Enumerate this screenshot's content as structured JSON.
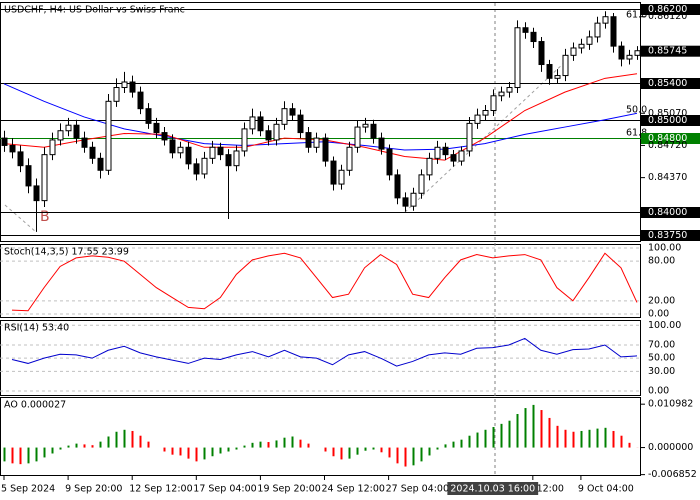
{
  "chart_data": [
    {
      "type": "candlestick",
      "title": "USDCHF, H4:  US Dollar vs Swiss Franc",
      "open": [
        0.848,
        0.8472,
        0.8465,
        0.845,
        0.8428,
        0.8412,
        0.8462,
        0.8478,
        0.8488,
        0.8494,
        0.848,
        0.847,
        0.8458,
        0.8445,
        0.852,
        0.8535,
        0.8541,
        0.853,
        0.8512,
        0.8496,
        0.8486,
        0.8478,
        0.8464,
        0.847,
        0.8452,
        0.8441,
        0.8458,
        0.847,
        0.8462,
        0.845,
        0.8466,
        0.849,
        0.8503,
        0.8488,
        0.8478,
        0.8495,
        0.8512,
        0.8505,
        0.8486,
        0.847,
        0.848,
        0.8455,
        0.843,
        0.8445,
        0.847,
        0.8492,
        0.8495,
        0.848,
        0.8468,
        0.844,
        0.8415,
        0.8406,
        0.842,
        0.844,
        0.8458,
        0.847,
        0.8462,
        0.8455,
        0.8466,
        0.8496,
        0.8505,
        0.851,
        0.8526,
        0.853,
        0.8535,
        0.86,
        0.8595,
        0.8585,
        0.856,
        0.8545,
        0.8548,
        0.857,
        0.8578,
        0.8582,
        0.859,
        0.8605,
        0.8612,
        0.858,
        0.8566,
        0.857
      ],
      "high": [
        0.8488,
        0.848,
        0.8472,
        0.8458,
        0.8436,
        0.847,
        0.8486,
        0.8496,
        0.8502,
        0.85,
        0.8487,
        0.8476,
        0.8464,
        0.8528,
        0.8545,
        0.8552,
        0.8548,
        0.8536,
        0.8518,
        0.8502,
        0.8492,
        0.8484,
        0.8476,
        0.8476,
        0.8458,
        0.8465,
        0.8477,
        0.8475,
        0.8468,
        0.8472,
        0.8497,
        0.8512,
        0.8509,
        0.8494,
        0.8502,
        0.852,
        0.8518,
        0.8511,
        0.8492,
        0.8486,
        0.8485,
        0.846,
        0.8451,
        0.8476,
        0.8499,
        0.8502,
        0.85,
        0.8486,
        0.8473,
        0.8446,
        0.8421,
        0.8426,
        0.8446,
        0.8464,
        0.8477,
        0.8475,
        0.8467,
        0.8471,
        0.8503,
        0.8512,
        0.8516,
        0.8533,
        0.8536,
        0.8541,
        0.8608,
        0.8606,
        0.86,
        0.859,
        0.8565,
        0.8555,
        0.8577,
        0.8584,
        0.8588,
        0.8597,
        0.8612,
        0.8618,
        0.8616,
        0.8585,
        0.8576,
        0.858
      ],
      "low": [
        0.8465,
        0.8458,
        0.8443,
        0.842,
        0.8378,
        0.8405,
        0.8456,
        0.8472,
        0.8482,
        0.8474,
        0.8464,
        0.8452,
        0.8436,
        0.844,
        0.8514,
        0.8529,
        0.8524,
        0.8506,
        0.849,
        0.848,
        0.8472,
        0.8458,
        0.8458,
        0.8446,
        0.8434,
        0.8436,
        0.8452,
        0.8456,
        0.8392,
        0.8444,
        0.846,
        0.8484,
        0.8482,
        0.8472,
        0.8472,
        0.8489,
        0.8499,
        0.848,
        0.8464,
        0.8464,
        0.8449,
        0.8423,
        0.8424,
        0.8439,
        0.8464,
        0.8486,
        0.8474,
        0.8462,
        0.8434,
        0.8408,
        0.84,
        0.8401,
        0.8414,
        0.8434,
        0.8452,
        0.8456,
        0.8449,
        0.845,
        0.846,
        0.849,
        0.8499,
        0.8504,
        0.852,
        0.8524,
        0.8529,
        0.8588,
        0.8578,
        0.8552,
        0.8538,
        0.8539,
        0.8542,
        0.8564,
        0.8572,
        0.8576,
        0.8584,
        0.8599,
        0.8573,
        0.8558,
        0.856,
        0.8565
      ],
      "close": [
        0.8472,
        0.8465,
        0.845,
        0.8428,
        0.8412,
        0.8462,
        0.8478,
        0.8488,
        0.8494,
        0.848,
        0.847,
        0.8458,
        0.8445,
        0.852,
        0.8535,
        0.8541,
        0.853,
        0.8512,
        0.8496,
        0.8486,
        0.8478,
        0.8464,
        0.847,
        0.8452,
        0.8441,
        0.8458,
        0.847,
        0.8462,
        0.845,
        0.8466,
        0.849,
        0.8503,
        0.8488,
        0.8478,
        0.8495,
        0.8512,
        0.8505,
        0.8486,
        0.847,
        0.848,
        0.8455,
        0.843,
        0.8445,
        0.847,
        0.8492,
        0.8495,
        0.848,
        0.8468,
        0.844,
        0.8415,
        0.8406,
        0.842,
        0.844,
        0.8458,
        0.847,
        0.8462,
        0.8455,
        0.8466,
        0.8496,
        0.8505,
        0.851,
        0.8526,
        0.853,
        0.8535,
        0.86,
        0.8595,
        0.8585,
        0.856,
        0.8545,
        0.8548,
        0.857,
        0.8578,
        0.8582,
        0.859,
        0.8605,
        0.8612,
        0.858,
        0.8566,
        0.857,
        0.8575
      ],
      "ma": [
        {
          "color": "#0000ff",
          "x": [
            0,
            5,
            10,
            15,
            20,
            25,
            30,
            35,
            40,
            45,
            50,
            55,
            60,
            65,
            70,
            75,
            79
          ],
          "values": [
            0.8539,
            0.852,
            0.8503,
            0.849,
            0.8482,
            0.8474,
            0.8472,
            0.8474,
            0.8476,
            0.8472,
            0.8467,
            0.8468,
            0.8474,
            0.8484,
            0.8492,
            0.85,
            0.8507
          ]
        },
        {
          "color": "#ff0000",
          "x": [
            0,
            5,
            10,
            15,
            20,
            25,
            30,
            35,
            40,
            45,
            50,
            55,
            60,
            65,
            70,
            75,
            79
          ],
          "values": [
            0.8474,
            0.847,
            0.8478,
            0.8485,
            0.8484,
            0.847,
            0.847,
            0.848,
            0.8478,
            0.847,
            0.846,
            0.8456,
            0.848,
            0.851,
            0.853,
            0.8545,
            0.855
          ]
        }
      ],
      "ylim": [
        0.8367,
        0.8628
      ],
      "yticks": [
        {
          "value": 0.8612,
          "label": "0.86120"
        },
        {
          "value": 0.8507,
          "label": "0.85070"
        },
        {
          "value": 0.8472,
          "label": "0.84720"
        },
        {
          "value": 0.8437,
          "label": "0.84370"
        }
      ],
      "levels": [
        {
          "value": 0.862,
          "label": "0.86200",
          "color": "#000000"
        },
        {
          "value": 0.854,
          "label": "0.85400",
          "color": "#000000"
        },
        {
          "value": 0.85,
          "label": "0.85000",
          "color": "#000000"
        },
        {
          "value": 0.848,
          "label": "0.84800",
          "color": "#008000"
        },
        {
          "value": 0.84,
          "label": "0.84000",
          "color": "#000000"
        },
        {
          "value": 0.8375,
          "label": "0.83750",
          "color": "#000000"
        }
      ],
      "last_price": {
        "value": 0.85745,
        "label": "0.85745"
      },
      "annotations": [
        "61.8",
        "50.0",
        "61.8",
        "B"
      ],
      "x_labels": [
        {
          "at": 0,
          "label": "5 Sep 2024"
        },
        {
          "at": 8,
          "label": "9 Sep 20:00"
        },
        {
          "at": 16,
          "label": "12 Sep 12:00"
        },
        {
          "at": 24,
          "label": "17 Sep 04:00"
        },
        {
          "at": 32,
          "label": "19 Sep 20:00"
        },
        {
          "at": 40,
          "label": "24 Sep 12:00"
        },
        {
          "at": 48,
          "label": "27 Sep 04:00"
        },
        {
          "at": 66,
          "label": "t 12:00"
        },
        {
          "at": 72,
          "label": "9 Oct 04:00"
        }
      ],
      "crosshair": {
        "at": 61,
        "label": "2024.10.03 16:00"
      }
    },
    {
      "type": "line",
      "title": "Stoch(14,3,5) 17.55 23.99",
      "color": "#ff0000",
      "x": [
        1,
        3,
        5,
        7,
        9,
        11,
        13,
        15,
        17,
        19,
        21,
        23,
        25,
        27,
        29,
        31,
        33,
        35,
        37,
        39,
        41,
        43,
        45,
        47,
        49,
        51,
        53,
        55,
        57,
        59,
        61,
        63,
        65,
        67,
        69,
        71,
        73,
        75,
        77,
        79
      ],
      "values": [
        6,
        5,
        40,
        72,
        85,
        88,
        86,
        80,
        60,
        40,
        25,
        10,
        8,
        25,
        60,
        82,
        88,
        92,
        85,
        55,
        25,
        30,
        70,
        90,
        75,
        30,
        25,
        55,
        82,
        90,
        85,
        88,
        90,
        82,
        40,
        20,
        55,
        92,
        70,
        17.55
      ],
      "ylim": [
        -6,
        106
      ],
      "yticks": [
        {
          "value": 100,
          "label": "100.00"
        },
        {
          "value": 80,
          "label": "80.00"
        },
        {
          "value": 20,
          "label": "20.00"
        },
        {
          "value": 0,
          "label": "0.00"
        }
      ]
    },
    {
      "type": "line",
      "title": "RSI(14) 53.40",
      "color": "#0000cd",
      "x": [
        1,
        3,
        5,
        7,
        9,
        11,
        13,
        15,
        17,
        19,
        21,
        23,
        25,
        27,
        29,
        31,
        33,
        35,
        37,
        39,
        41,
        43,
        45,
        47,
        49,
        51,
        53,
        55,
        57,
        59,
        61,
        63,
        65,
        67,
        69,
        71,
        73,
        75,
        77,
        79
      ],
      "values": [
        48,
        42,
        50,
        56,
        55,
        50,
        62,
        68,
        58,
        52,
        47,
        42,
        50,
        48,
        55,
        60,
        52,
        62,
        52,
        50,
        40,
        55,
        60,
        50,
        38,
        45,
        55,
        58,
        56,
        65,
        66,
        70,
        80,
        62,
        56,
        63,
        64,
        70,
        52,
        53.4
      ],
      "ylim": [
        -6,
        108
      ],
      "yticks": [
        {
          "value": 100,
          "label": "100.00"
        },
        {
          "value": 70,
          "label": "70.00"
        },
        {
          "value": 50,
          "label": "50.00"
        },
        {
          "value": 30,
          "label": "30.00"
        },
        {
          "value": 0,
          "label": "0.00"
        }
      ]
    },
    {
      "type": "bar",
      "title": "AO 0.000027",
      "up_color": "#008000",
      "down_color": "#ff0000",
      "values": [
        -0.0035,
        -0.004,
        -0.0042,
        -0.004,
        -0.0035,
        -0.0025,
        -0.0015,
        -0.0005,
        0.0005,
        0.001,
        0.0008,
        0.0006,
        0.0015,
        0.0028,
        0.004,
        0.0045,
        0.0042,
        0.003,
        0.0015,
        0.0,
        -0.001,
        -0.0018,
        -0.002,
        -0.0028,
        -0.0035,
        -0.003,
        -0.0022,
        -0.0015,
        -0.001,
        -0.0005,
        0.0005,
        0.0012,
        0.0015,
        0.0014,
        0.0018,
        0.0025,
        0.0028,
        0.002,
        0.001,
        0.0,
        -0.001,
        -0.0022,
        -0.003,
        -0.0028,
        -0.0018,
        -0.0008,
        -0.0005,
        -0.0012,
        -0.0025,
        -0.004,
        -0.0048,
        -0.0045,
        -0.0035,
        -0.002,
        -0.0005,
        0.0008,
        0.0015,
        0.002,
        0.003,
        0.0038,
        0.0045,
        0.0052,
        0.006,
        0.0068,
        0.0085,
        0.01,
        0.0108,
        0.0095,
        0.0075,
        0.0055,
        0.0045,
        0.004,
        0.0042,
        0.0045,
        0.0048,
        0.005,
        0.0042,
        0.003,
        0.0012,
        2.7e-05
      ],
      "ylim": [
        -0.0072,
        0.0128
      ],
      "yticks": [
        {
          "value": 0.010982,
          "label": "0.010982"
        },
        {
          "value": 0,
          "label": "0.000000"
        },
        {
          "value": -0.006852,
          "label": "-0.006852"
        }
      ]
    }
  ]
}
